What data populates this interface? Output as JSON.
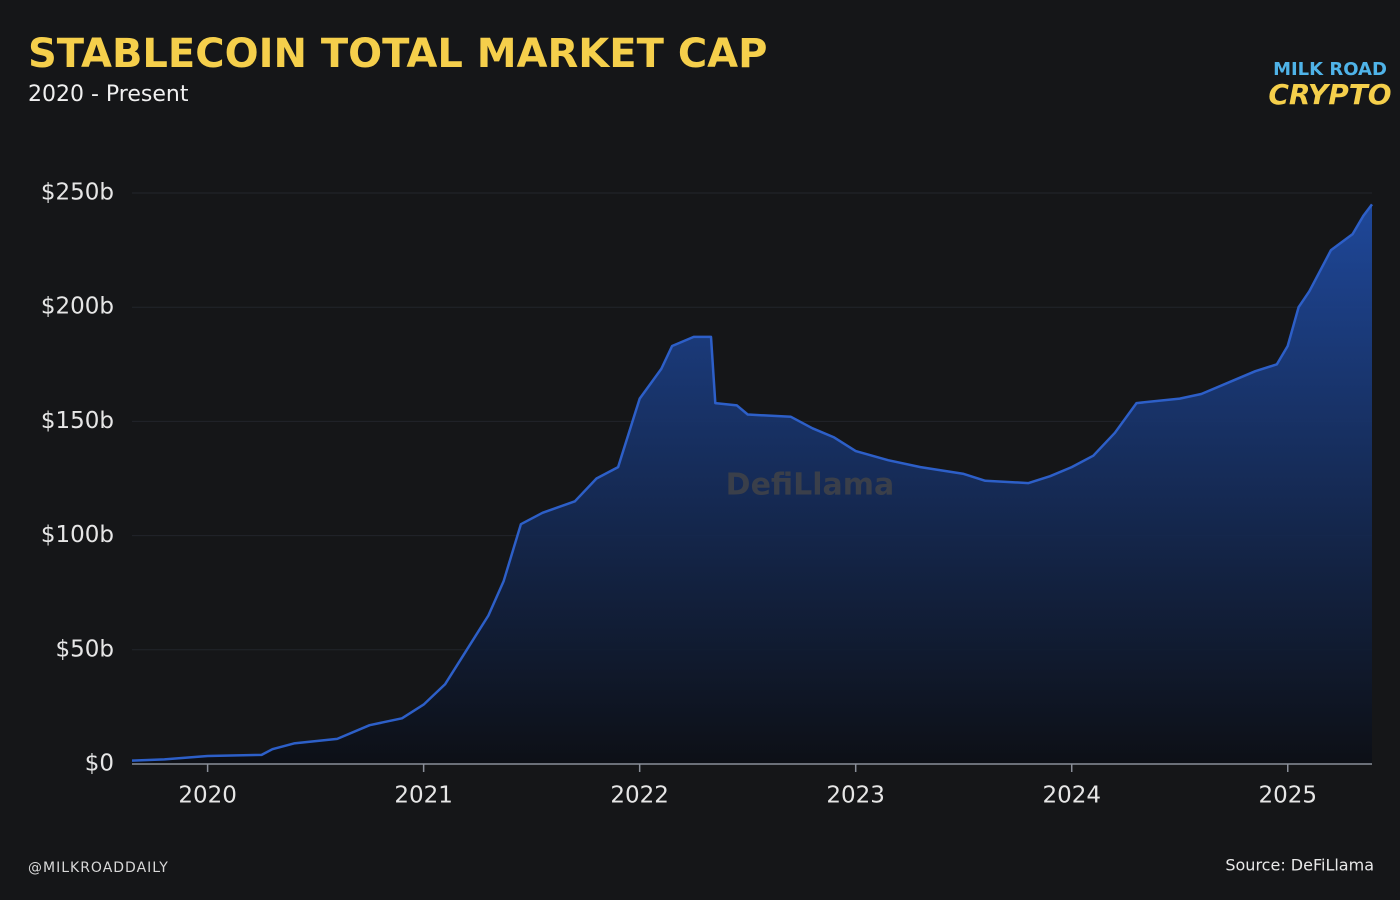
{
  "chart_data": {
    "type": "area",
    "title": "STABLECOIN TOTAL MARKET CAP",
    "subtitle": "2020 - Present",
    "logo_top": "MILK ROAD",
    "logo_bottom": "CRYPTO",
    "watermark": "DefiLlama",
    "footer_left": "@MILKROADDAILY",
    "footer_right": "Source: DeFiLlama",
    "color": "#2d5fc8",
    "x": [
      2019.65,
      2019.8,
      2020.0,
      2020.25,
      2020.3,
      2020.4,
      2020.6,
      2020.75,
      2020.9,
      2021.0,
      2021.1,
      2021.2,
      2021.3,
      2021.37,
      2021.45,
      2021.55,
      2021.7,
      2021.8,
      2021.9,
      2022.0,
      2022.1,
      2022.15,
      2022.25,
      2022.33,
      2022.35,
      2022.45,
      2022.5,
      2022.7,
      2022.8,
      2022.9,
      2023.0,
      2023.15,
      2023.3,
      2023.5,
      2023.6,
      2023.8,
      2023.9,
      2024.0,
      2024.1,
      2024.2,
      2024.3,
      2024.5,
      2024.6,
      2024.75,
      2024.85,
      2024.95,
      2025.0,
      2025.05,
      2025.1,
      2025.2,
      2025.3,
      2025.35,
      2025.39
    ],
    "values": [
      1.5,
      2,
      3.5,
      4,
      6.5,
      9,
      11,
      17,
      20,
      26,
      35,
      50,
      65,
      80,
      105,
      110,
      115,
      125,
      130,
      160,
      173,
      183,
      187,
      187,
      158,
      157,
      153,
      152,
      147,
      143,
      137,
      133,
      130,
      127,
      124,
      123,
      126,
      130,
      135,
      145,
      158,
      160,
      162,
      168,
      172,
      175,
      183,
      200,
      207,
      225,
      232,
      240,
      245
    ],
    "xlim": [
      2019.65,
      2025.39
    ],
    "xticks": [
      2020,
      2021,
      2022,
      2023,
      2024,
      2025
    ],
    "ylim": [
      0,
      250
    ],
    "yticks": [
      {
        "value": 0,
        "label": "$0"
      },
      {
        "value": 50,
        "label": "$50b"
      },
      {
        "value": 100,
        "label": "$100b"
      },
      {
        "value": 150,
        "label": "$150b"
      },
      {
        "value": 200,
        "label": "$200b"
      },
      {
        "value": 250,
        "label": "$250b"
      }
    ]
  }
}
